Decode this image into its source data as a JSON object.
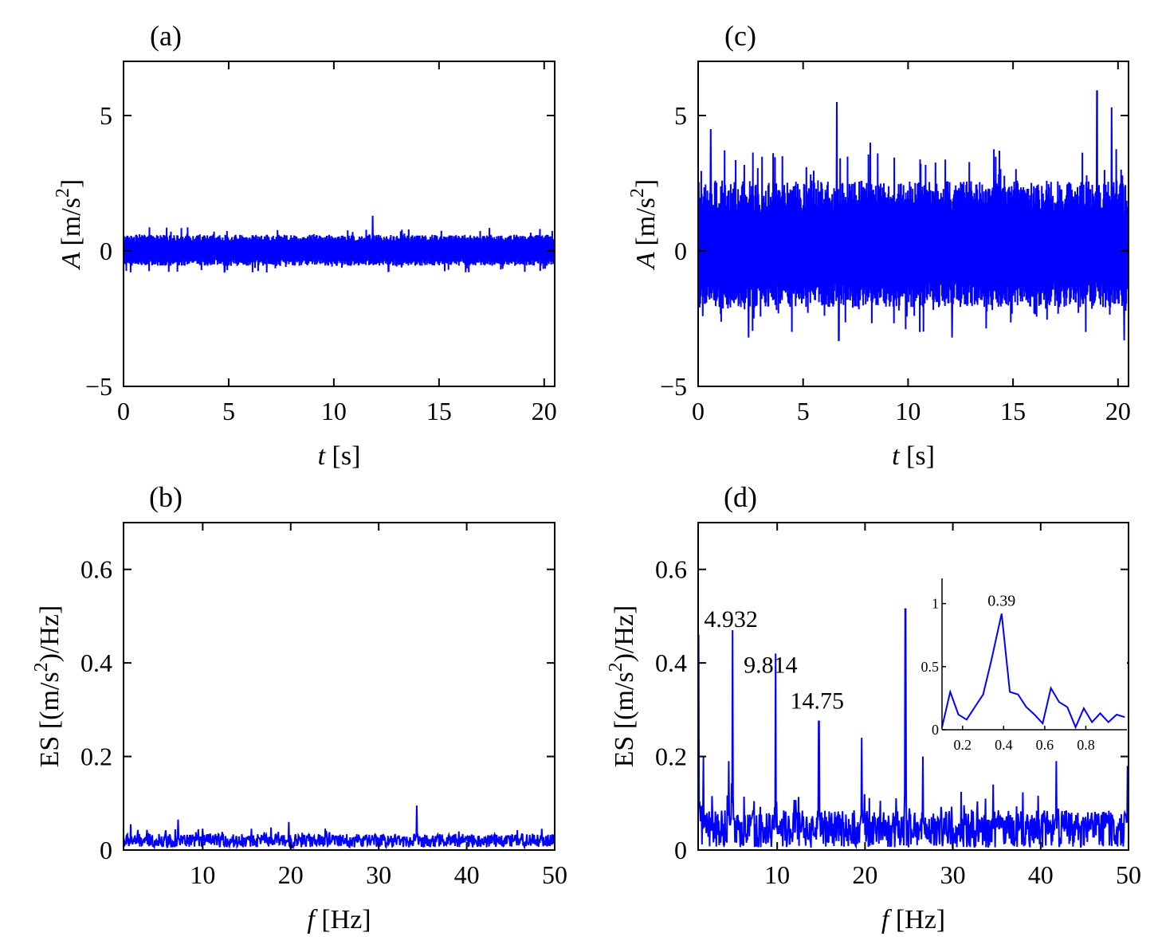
{
  "style": {
    "line_color": "#0000ff",
    "axes_color": "#000000",
    "background": "#ffffff"
  },
  "chart_data": [
    {
      "id": "a",
      "panel_label": "(a)",
      "type": "line",
      "xlabel_var": "t",
      "xlabel_unit": "[s]",
      "ylabel_var": "A",
      "ylabel_unit": "[m/s",
      "ylabel_sup": "2",
      "ylabel_close": "]",
      "xlim": [
        0,
        20.5
      ],
      "ylim": [
        -5,
        7
      ],
      "xticks": [
        0,
        5,
        10,
        15,
        20
      ],
      "yticks": [
        -5,
        0,
        5
      ],
      "ytick_labels": [
        "−5",
        "0",
        "5"
      ],
      "grid": false,
      "signal": {
        "envelope_pos": 0.6,
        "envelope_neg": -0.55,
        "peaks": [
          [
            11.85,
            1.3
          ],
          [
            4.8,
            -0.8
          ],
          [
            12.6,
            -0.75
          ],
          [
            17.4,
            0.85
          ]
        ]
      }
    },
    {
      "id": "c",
      "panel_label": "(c)",
      "type": "line",
      "xlabel_var": "t",
      "xlabel_unit": "[s]",
      "ylabel_var": "A",
      "ylabel_unit": "[m/s",
      "ylabel_sup": "2",
      "ylabel_close": "]",
      "xlim": [
        0,
        20.5
      ],
      "ylim": [
        -5,
        7
      ],
      "xticks": [
        0,
        5,
        10,
        15,
        20
      ],
      "yticks": [
        -5,
        0,
        5
      ],
      "ytick_labels": [
        "−5",
        "0",
        "5"
      ],
      "grid": false,
      "signal": {
        "envelope_pos": 2.6,
        "envelope_neg": -2.1,
        "peaks": [
          [
            6.6,
            5.5
          ],
          [
            19.0,
            5.9
          ],
          [
            19.7,
            5.3
          ],
          [
            0.6,
            4.5
          ],
          [
            2.4,
            -3.2
          ],
          [
            6.7,
            -3.3
          ],
          [
            12.1,
            -3.2
          ],
          [
            20.3,
            -3.3
          ],
          [
            8.2,
            4.0
          ]
        ]
      }
    },
    {
      "id": "b",
      "panel_label": "(b)",
      "type": "line",
      "xlabel_var": "f",
      "xlabel_unit": "[Hz]",
      "ylabel_prefix": "ES [(m/s",
      "ylabel_sup": "2",
      "ylabel_close": ")/Hz]",
      "xlim": [
        1,
        50
      ],
      "ylim": [
        0,
        0.7
      ],
      "xticks": [
        10,
        20,
        30,
        40,
        50
      ],
      "yticks": [
        0,
        0.2,
        0.4,
        0.6
      ],
      "ytick_labels": [
        "0",
        "0.2",
        "0.4",
        "0.6"
      ],
      "grid": false,
      "signal": {
        "baseline": 0.02,
        "noise": 0.018,
        "peaks": [
          [
            34.3,
            0.095
          ],
          [
            7.2,
            0.065
          ],
          [
            19.8,
            0.06
          ],
          [
            1.8,
            0.055
          ]
        ]
      }
    },
    {
      "id": "d",
      "panel_label": "(d)",
      "type": "line",
      "xlabel_var": "f",
      "xlabel_unit": "[Hz]",
      "ylabel_prefix": "ES [(m/s",
      "ylabel_sup": "2",
      "ylabel_close": ")/Hz]",
      "xlim": [
        1,
        50
      ],
      "ylim": [
        0,
        0.7
      ],
      "xticks": [
        10,
        20,
        30,
        40,
        50
      ],
      "yticks": [
        0,
        0.2,
        0.4,
        0.6
      ],
      "ytick_labels": [
        "0",
        "0.2",
        "0.4",
        "0.6"
      ],
      "grid": false,
      "signal": {
        "baseline": 0.045,
        "noise": 0.05,
        "peaks": [
          [
            1.05,
            0.46
          ],
          [
            4.932,
            0.47
          ],
          [
            9.814,
            0.42
          ],
          [
            14.75,
            0.275
          ],
          [
            19.6,
            0.24
          ],
          [
            24.6,
            0.515
          ],
          [
            26.6,
            0.2
          ],
          [
            34.6,
            0.14
          ],
          [
            41.8,
            0.19
          ],
          [
            49.9,
            0.18
          ],
          [
            1.6,
            0.2
          ],
          [
            4.5,
            0.19
          ]
        ]
      },
      "annotations": [
        {
          "text": "4.932",
          "x": 4.932,
          "y": 0.47
        },
        {
          "text": "9.814",
          "x": 9.814,
          "y": 0.42
        },
        {
          "text": "14.75",
          "x": 14.75,
          "y": 0.275
        }
      ],
      "inset": {
        "type": "line",
        "xlim": [
          0.1,
          1.0
        ],
        "ylim": [
          0,
          1.2
        ],
        "xticks": [
          0.2,
          0.4,
          0.6,
          0.8
        ],
        "xtick_labels": [
          "0.2",
          "0.4",
          "0.6",
          "0.8"
        ],
        "yticks": [
          0,
          0.5,
          1
        ],
        "ytick_labels": [
          "0",
          "0.5",
          "1"
        ],
        "x": [
          0.1,
          0.14,
          0.18,
          0.22,
          0.26,
          0.3,
          0.34,
          0.39,
          0.43,
          0.47,
          0.51,
          0.55,
          0.59,
          0.63,
          0.67,
          0.71,
          0.75,
          0.79,
          0.83,
          0.87,
          0.91,
          0.95,
          0.99
        ],
        "y": [
          0.02,
          0.3,
          0.12,
          0.08,
          0.18,
          0.28,
          0.55,
          0.92,
          0.3,
          0.28,
          0.18,
          0.12,
          0.05,
          0.33,
          0.22,
          0.18,
          0.02,
          0.17,
          0.06,
          0.13,
          0.06,
          0.12,
          0.1
        ],
        "annotation": {
          "text": "0.39",
          "x": 0.39,
          "y": 0.92
        }
      }
    }
  ]
}
